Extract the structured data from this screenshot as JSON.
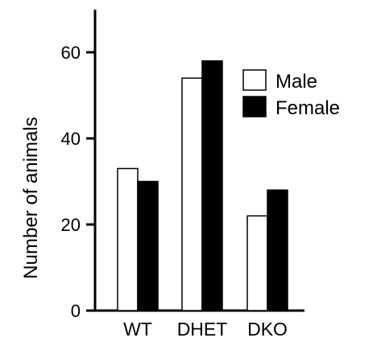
{
  "chart_data": {
    "type": "bar",
    "categories": [
      "WT",
      "DHET",
      "DKO"
    ],
    "series": [
      {
        "name": "Male",
        "values": [
          33,
          54,
          22
        ],
        "fill": "#ffffff",
        "stroke": "#000000"
      },
      {
        "name": "Female",
        "values": [
          30,
          58,
          28
        ],
        "fill": "#000000",
        "stroke": "#000000"
      }
    ],
    "ylabel": "Number of animals",
    "ylim": [
      0,
      70
    ],
    "yticks": [
      0,
      20,
      40,
      60
    ],
    "yticklabels": [
      "0",
      "20",
      "40",
      "60"
    ],
    "legend_position": "top-right",
    "grid": false
  }
}
